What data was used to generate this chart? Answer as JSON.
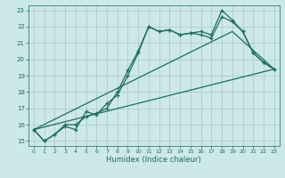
{
  "xlabel": "Humidex (Indice chaleur)",
  "bg_color": "#cde8e8",
  "grid_color": "#a8c8c8",
  "line_color": "#1e6b5e",
  "xlim": [
    -0.5,
    23.5
  ],
  "ylim": [
    14.7,
    23.3
  ],
  "yticks": [
    15,
    16,
    17,
    18,
    19,
    20,
    21,
    22,
    23
  ],
  "xticks": [
    0,
    1,
    2,
    3,
    4,
    5,
    6,
    7,
    8,
    9,
    10,
    11,
    12,
    13,
    14,
    15,
    16,
    17,
    18,
    19,
    20,
    21,
    22,
    23
  ],
  "line1_x": [
    0,
    1,
    2,
    3,
    4,
    5,
    6,
    7,
    8,
    9,
    10,
    11,
    12,
    13,
    14,
    15,
    16,
    17,
    18,
    19,
    20,
    21,
    22,
    23
  ],
  "line1_y": [
    15.7,
    15.0,
    15.4,
    16.0,
    16.0,
    16.5,
    16.7,
    17.0,
    18.0,
    19.3,
    20.5,
    22.0,
    21.7,
    21.8,
    21.5,
    21.6,
    21.7,
    21.5,
    23.0,
    22.4,
    21.7,
    20.4,
    19.8,
    19.4
  ],
  "line2_x": [
    0,
    1,
    2,
    3,
    4,
    5,
    6,
    7,
    8,
    9,
    10,
    11,
    12,
    13,
    14,
    15,
    16,
    17,
    18,
    19,
    20,
    21,
    22,
    23
  ],
  "line2_y": [
    15.7,
    15.0,
    15.4,
    15.9,
    15.7,
    16.8,
    16.6,
    17.3,
    17.8,
    19.0,
    20.4,
    22.0,
    21.7,
    21.8,
    21.5,
    21.6,
    21.5,
    21.3,
    22.6,
    22.3,
    21.7,
    20.4,
    19.8,
    19.4
  ],
  "line3_x": [
    0,
    23
  ],
  "line3_y": [
    15.7,
    19.4
  ],
  "line4_x": [
    0,
    19,
    23
  ],
  "line4_y": [
    15.7,
    21.7,
    19.4
  ]
}
